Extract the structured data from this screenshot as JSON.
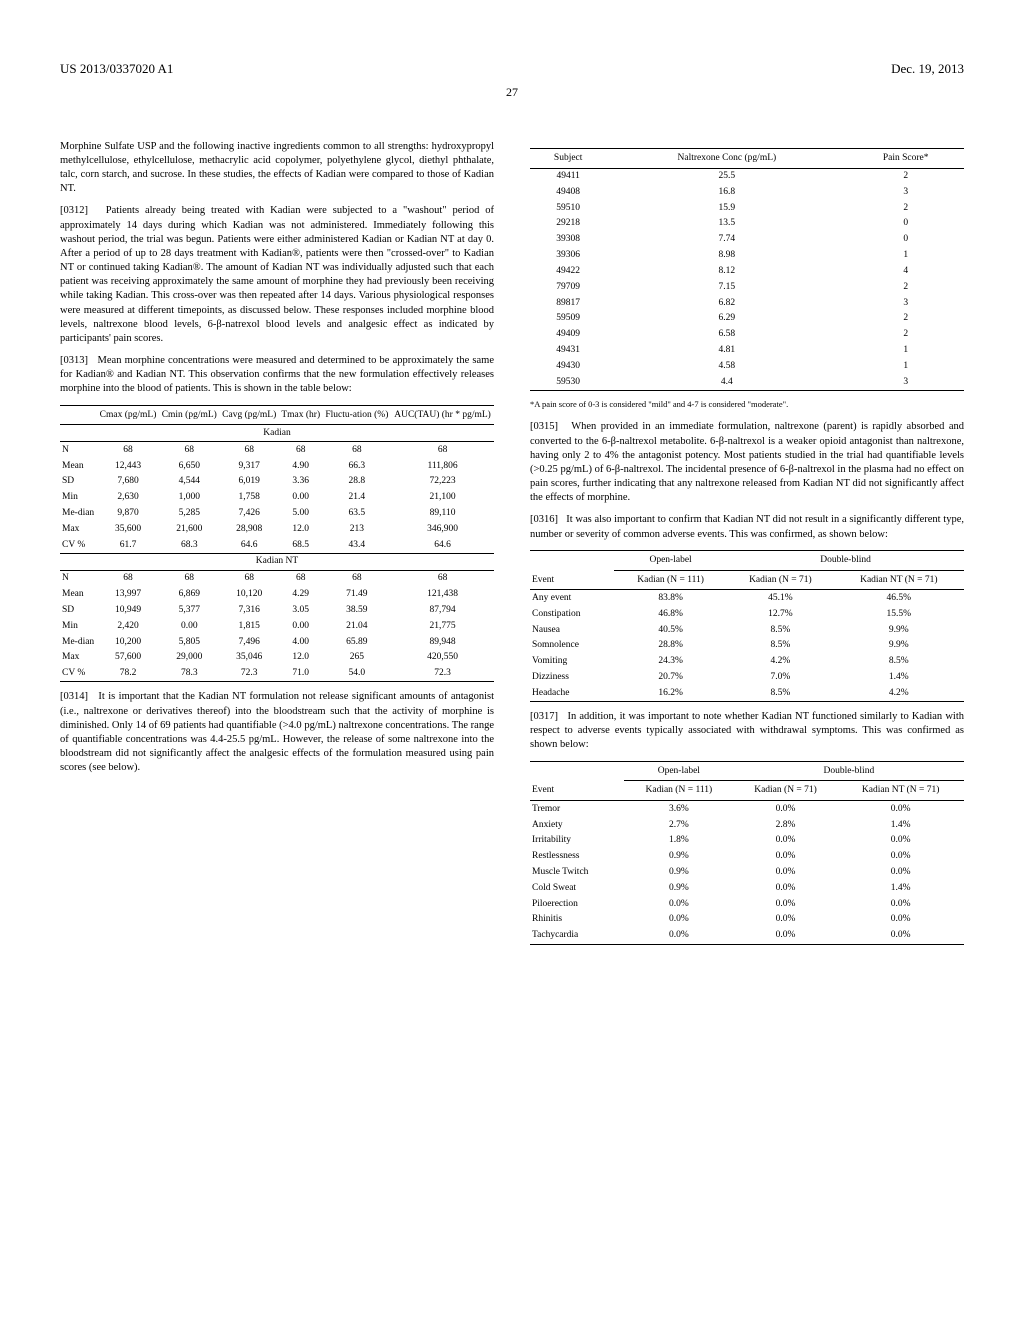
{
  "header": {
    "left": "US 2013/0337020 A1",
    "right": "Dec. 19, 2013",
    "page": "27"
  },
  "col1": {
    "intro_text": "Morphine Sulfate USP and the following inactive ingredients common to all strengths: hydroxypropyl methylcellulose, ethylcellulose, methacrylic acid copolymer, polyethylene glycol, diethyl phthalate, talc, corn starch, and sucrose. In these studies, the effects of Kadian were compared to those of Kadian NT.",
    "p0312_num": "[0312]",
    "p0312": "Patients already being treated with Kadian were subjected to a \"washout\" period of approximately 14 days during which Kadian was not administered. Immediately following this washout period, the trial was begun. Patients were either administered Kadian or Kadian NT at day 0. After a period of up to 28 days treatment with Kadian®, patients were then \"crossed-over\" to Kadian NT or continued taking Kadian®. The amount of Kadian NT was individually adjusted such that each patient was receiving approximately the same amount of morphine they had previously been receiving while taking Kadian. This cross-over was then repeated after 14 days. Various physiological responses were measured at different timepoints, as discussed below. These responses included morphine blood levels, naltrexone blood levels, 6-β-natrexol blood levels and analgesic effect as indicated by participants' pain scores.",
    "p0313_num": "[0313]",
    "p0313": "Mean morphine concentrations were measured and determined to be approximately the same for Kadian® and Kadian NT. This observation confirms that the new formulation effectively releases morphine into the blood of patients. This is shown in the table below:",
    "p0314_num": "[0314]",
    "p0314": "It is important that the Kadian NT formulation not release significant amounts of antagonist (i.e., naltrexone or derivatives thereof) into the bloodstream such that the activity of morphine is diminished. Only 14 of 69 patients had quantifiable (>4.0 pg/mL) naltrexone concentrations. The range of quantifiable concentrations was 4.4-25.5 pg/mL. However, the release of some naltrexone into the bloodstream did not significantly affect the analgesic effects of the formulation measured using pain scores (see below)."
  },
  "pk_table": {
    "headers": [
      "",
      "Cmax (pg/mL)",
      "Cmin (pg/mL)",
      "Cavg (pg/mL)",
      "Tmax (hr)",
      "Fluctu-ation (%)",
      "AUC(TAU) (hr * pg/mL)"
    ],
    "section1": "Kadian",
    "rows1": [
      [
        "N",
        "68",
        "68",
        "68",
        "68",
        "68",
        "68"
      ],
      [
        "Mean",
        "12,443",
        "6,650",
        "9,317",
        "4.90",
        "66.3",
        "111,806"
      ],
      [
        "SD",
        "7,680",
        "4,544",
        "6,019",
        "3.36",
        "28.8",
        "72,223"
      ],
      [
        "Min",
        "2,630",
        "1,000",
        "1,758",
        "0.00",
        "21.4",
        "21,100"
      ],
      [
        "Me-dian",
        "9,870",
        "5,285",
        "7,426",
        "5.00",
        "63.5",
        "89,110"
      ],
      [
        "Max",
        "35,600",
        "21,600",
        "28,908",
        "12.0",
        "213",
        "346,900"
      ],
      [
        "CV %",
        "61.7",
        "68.3",
        "64.6",
        "68.5",
        "43.4",
        "64.6"
      ]
    ],
    "section2": "Kadian NT",
    "rows2": [
      [
        "N",
        "68",
        "68",
        "68",
        "68",
        "68",
        "68"
      ],
      [
        "Mean",
        "13,997",
        "6,869",
        "10,120",
        "4.29",
        "71.49",
        "121,438"
      ],
      [
        "SD",
        "10,949",
        "5,377",
        "7,316",
        "3.05",
        "38.59",
        "87,794"
      ],
      [
        "Min",
        "2,420",
        "0.00",
        "1,815",
        "0.00",
        "21.04",
        "21,775"
      ],
      [
        "Me-dian",
        "10,200",
        "5,805",
        "7,496",
        "4.00",
        "65.89",
        "89,948"
      ],
      [
        "Max",
        "57,600",
        "29,000",
        "35,046",
        "12.0",
        "265",
        "420,550"
      ],
      [
        "CV %",
        "78.2",
        "78.3",
        "72.3",
        "71.0",
        "54.0",
        "72.3"
      ]
    ]
  },
  "naltrexone_table": {
    "headers": [
      "Subject",
      "Naltrexone Conc (pg/mL)",
      "Pain Score*"
    ],
    "rows": [
      [
        "49411",
        "25.5",
        "2"
      ],
      [
        "49408",
        "16.8",
        "3"
      ],
      [
        "59510",
        "15.9",
        "2"
      ],
      [
        "29218",
        "13.5",
        "0"
      ],
      [
        "39308",
        "7.74",
        "0"
      ],
      [
        "39306",
        "8.98",
        "1"
      ],
      [
        "49422",
        "8.12",
        "4"
      ],
      [
        "79709",
        "7.15",
        "2"
      ],
      [
        "89817",
        "6.82",
        "3"
      ],
      [
        "59509",
        "6.29",
        "2"
      ],
      [
        "49409",
        "6.58",
        "2"
      ],
      [
        "49431",
        "4.81",
        "1"
      ],
      [
        "49430",
        "4.58",
        "1"
      ],
      [
        "59530",
        "4.4",
        "3"
      ]
    ],
    "footnote": "*A pain score of 0-3 is considered \"mild\" and 4-7 is considered \"moderate\"."
  },
  "col2": {
    "p0315_num": "[0315]",
    "p0315": "When provided in an immediate formulation, naltrexone (parent) is rapidly absorbed and converted to the 6-β-naltrexol metabolite. 6-β-naltrexol is a weaker opioid antagonist than naltrexone, having only 2 to 4% the antagonist potency. Most patients studied in the trial had quantifiable levels (>0.25 pg/mL) of 6-β-naltrexol. The incidental presence of 6-β-naltrexol in the plasma had no effect on pain scores, further indicating that any naltrexone released from Kadian NT did not significantly affect the effects of morphine.",
    "p0316_num": "[0316]",
    "p0316": "It was also important to confirm that Kadian NT did not result in a significantly different type, number or severity of common adverse events. This was confirmed, as shown below:",
    "p0317_num": "[0317]",
    "p0317": "In addition, it was important to note whether Kadian NT functioned similarly to Kadian with respect to adverse events typically associated with withdrawal symptoms. This was confirmed as shown below:"
  },
  "ae_table": {
    "group_headers": [
      "",
      "Open-label",
      "Double-blind"
    ],
    "sub_headers": [
      "Event",
      "Kadian (N = 111)",
      "Kadian (N = 71)",
      "Kadian NT (N = 71)"
    ],
    "rows": [
      [
        "Any event",
        "83.8%",
        "45.1%",
        "46.5%"
      ],
      [
        "Constipation",
        "46.8%",
        "12.7%",
        "15.5%"
      ],
      [
        "Nausea",
        "40.5%",
        "8.5%",
        "9.9%"
      ],
      [
        "Somnolence",
        "28.8%",
        "8.5%",
        "9.9%"
      ],
      [
        "Vomiting",
        "24.3%",
        "4.2%",
        "8.5%"
      ],
      [
        "Dizziness",
        "20.7%",
        "7.0%",
        "1.4%"
      ],
      [
        "Headache",
        "16.2%",
        "8.5%",
        "4.2%"
      ]
    ]
  },
  "withdrawal_table": {
    "group_headers": [
      "",
      "Open-label",
      "Double-blind"
    ],
    "sub_headers": [
      "Event",
      "Kadian (N = 111)",
      "Kadian (N = 71)",
      "Kadian NT (N = 71)"
    ],
    "rows": [
      [
        "Tremor",
        "3.6%",
        "0.0%",
        "0.0%"
      ],
      [
        "Anxiety",
        "2.7%",
        "2.8%",
        "1.4%"
      ],
      [
        "Irritability",
        "1.8%",
        "0.0%",
        "0.0%"
      ],
      [
        "Restlessness",
        "0.9%",
        "0.0%",
        "0.0%"
      ],
      [
        "Muscle Twitch",
        "0.9%",
        "0.0%",
        "0.0%"
      ],
      [
        "Cold Sweat",
        "0.9%",
        "0.0%",
        "1.4%"
      ],
      [
        "Piloerection",
        "0.0%",
        "0.0%",
        "0.0%"
      ],
      [
        "Rhinitis",
        "0.0%",
        "0.0%",
        "0.0%"
      ],
      [
        "Tachycardia",
        "0.0%",
        "0.0%",
        "0.0%"
      ]
    ]
  }
}
